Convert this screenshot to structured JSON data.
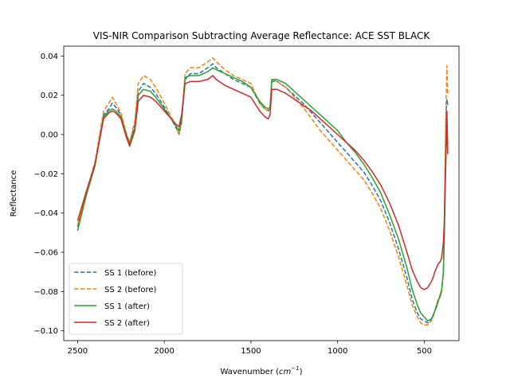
{
  "chart_data": {
    "type": "line",
    "title": "VIS-NIR Comparison Subtracting Average Reflectance: ACE SST BLACK",
    "xlabel_main": "Wavenumber (",
    "xlabel_unit": "cm",
    "xlabel_exp": "−1",
    "xlabel_close": ")",
    "ylabel": "Reflectance",
    "xlim": [
      2580,
      300
    ],
    "ylim": [
      -0.105,
      0.045
    ],
    "x_ticks": [
      2500,
      2000,
      1500,
      1000,
      500
    ],
    "x_tick_labels": [
      "2500",
      "2000",
      "1500",
      "1000",
      "500"
    ],
    "y_ticks": [
      0.04,
      0.02,
      0.0,
      -0.02,
      -0.04,
      -0.06,
      -0.08,
      -0.1
    ],
    "y_tick_labels": [
      "0.04",
      "0.02",
      "0.00",
      "−0.02",
      "−0.04",
      "−0.06",
      "−0.08",
      "−0.10"
    ],
    "legend_position": "lower-left",
    "series": [
      {
        "name": "SS 1 (before)",
        "color": "#1f77b4",
        "dash": true,
        "x": [
          2500,
          2450,
          2400,
          2350,
          2320,
          2300,
          2280,
          2250,
          2220,
          2200,
          2170,
          2150,
          2120,
          2080,
          2050,
          2000,
          1960,
          1930,
          1915,
          1900,
          1880,
          1850,
          1800,
          1750,
          1720,
          1700,
          1650,
          1600,
          1550,
          1500,
          1450,
          1420,
          1400,
          1390,
          1380,
          1350,
          1300,
          1250,
          1200,
          1150,
          1100,
          1050,
          1000,
          950,
          900,
          850,
          800,
          750,
          700,
          650,
          600,
          570,
          540,
          520,
          500,
          480,
          460,
          450,
          440,
          430,
          420,
          410,
          400,
          390,
          385,
          380,
          375,
          370,
          365
        ],
        "y": [
          -0.047,
          -0.03,
          -0.015,
          0.01,
          0.013,
          0.016,
          0.014,
          0.01,
          0.0,
          -0.004,
          0.005,
          0.022,
          0.026,
          0.024,
          0.021,
          0.014,
          0.008,
          0.003,
          0.0,
          0.006,
          0.028,
          0.031,
          0.031,
          0.034,
          0.036,
          0.034,
          0.031,
          0.028,
          0.026,
          0.024,
          0.016,
          0.013,
          0.012,
          0.013,
          0.027,
          0.027,
          0.024,
          0.02,
          0.016,
          0.011,
          0.006,
          0.001,
          -0.004,
          -0.009,
          -0.014,
          -0.019,
          -0.026,
          -0.034,
          -0.045,
          -0.058,
          -0.073,
          -0.084,
          -0.091,
          -0.094,
          -0.095,
          -0.096,
          -0.094,
          -0.093,
          -0.09,
          -0.087,
          -0.084,
          -0.083,
          -0.08,
          -0.07,
          -0.05,
          -0.02,
          0.01,
          0.018,
          0.015
        ]
      },
      {
        "name": "SS 2 (before)",
        "color": "#ff7f0e",
        "dash": true,
        "x": [
          2500,
          2450,
          2400,
          2350,
          2320,
          2300,
          2280,
          2250,
          2220,
          2200,
          2170,
          2150,
          2120,
          2080,
          2050,
          2000,
          1960,
          1930,
          1915,
          1900,
          1880,
          1850,
          1800,
          1750,
          1720,
          1700,
          1650,
          1600,
          1550,
          1500,
          1450,
          1420,
          1400,
          1390,
          1380,
          1350,
          1300,
          1250,
          1200,
          1150,
          1100,
          1050,
          1000,
          950,
          900,
          850,
          800,
          750,
          700,
          650,
          600,
          570,
          540,
          520,
          500,
          480,
          460,
          450,
          440,
          430,
          420,
          410,
          400,
          390,
          385,
          380,
          375,
          370,
          365
        ],
        "y": [
          -0.046,
          -0.03,
          -0.014,
          0.012,
          0.016,
          0.019,
          0.016,
          0.011,
          0.001,
          -0.004,
          0.007,
          0.026,
          0.03,
          0.028,
          0.024,
          0.016,
          0.009,
          0.004,
          0.0,
          0.007,
          0.031,
          0.034,
          0.034,
          0.037,
          0.039,
          0.037,
          0.033,
          0.03,
          0.028,
          0.026,
          0.016,
          0.013,
          0.012,
          0.013,
          0.028,
          0.027,
          0.024,
          0.019,
          0.014,
          0.008,
          0.002,
          -0.003,
          -0.008,
          -0.013,
          -0.018,
          -0.023,
          -0.03,
          -0.038,
          -0.049,
          -0.062,
          -0.077,
          -0.087,
          -0.093,
          -0.096,
          -0.097,
          -0.097,
          -0.095,
          -0.093,
          -0.09,
          -0.087,
          -0.084,
          -0.083,
          -0.08,
          -0.07,
          -0.05,
          -0.015,
          0.015,
          0.035,
          0.02
        ]
      },
      {
        "name": "SS 1 (after)",
        "color": "#2ca02c",
        "dash": false,
        "x": [
          2500,
          2450,
          2400,
          2350,
          2320,
          2300,
          2280,
          2250,
          2220,
          2200,
          2170,
          2150,
          2120,
          2080,
          2050,
          2000,
          1960,
          1930,
          1915,
          1900,
          1880,
          1850,
          1800,
          1750,
          1720,
          1700,
          1650,
          1600,
          1550,
          1500,
          1450,
          1420,
          1400,
          1390,
          1380,
          1350,
          1300,
          1250,
          1200,
          1150,
          1100,
          1050,
          1000,
          950,
          900,
          850,
          800,
          750,
          700,
          650,
          600,
          570,
          540,
          520,
          500,
          480,
          460,
          450,
          440,
          430,
          420,
          410,
          400,
          390,
          385,
          380,
          375,
          370,
          365
        ],
        "y": [
          -0.049,
          -0.031,
          -0.016,
          0.009,
          0.012,
          0.013,
          0.012,
          0.009,
          0.0,
          -0.005,
          0.003,
          0.02,
          0.023,
          0.022,
          0.019,
          0.013,
          0.008,
          0.004,
          0.002,
          0.008,
          0.029,
          0.03,
          0.03,
          0.032,
          0.034,
          0.033,
          0.031,
          0.029,
          0.027,
          0.024,
          0.017,
          0.014,
          0.013,
          0.014,
          0.028,
          0.028,
          0.026,
          0.022,
          0.018,
          0.014,
          0.01,
          0.006,
          0.002,
          -0.004,
          -0.009,
          -0.015,
          -0.022,
          -0.03,
          -0.041,
          -0.053,
          -0.068,
          -0.079,
          -0.087,
          -0.091,
          -0.093,
          -0.095,
          -0.094,
          -0.092,
          -0.09,
          -0.088,
          -0.085,
          -0.082,
          -0.079,
          -0.07,
          -0.055,
          -0.03,
          -0.01,
          0.005,
          -0.005
        ]
      },
      {
        "name": "SS 2 (after)",
        "color": "#d62728",
        "dash": false,
        "x": [
          2500,
          2450,
          2400,
          2350,
          2320,
          2300,
          2280,
          2250,
          2220,
          2200,
          2170,
          2150,
          2120,
          2080,
          2050,
          2000,
          1960,
          1930,
          1915,
          1900,
          1880,
          1850,
          1800,
          1750,
          1720,
          1700,
          1650,
          1600,
          1550,
          1500,
          1450,
          1420,
          1400,
          1390,
          1380,
          1350,
          1300,
          1250,
          1200,
          1150,
          1100,
          1050,
          1000,
          950,
          900,
          850,
          800,
          750,
          700,
          650,
          600,
          570,
          540,
          520,
          500,
          480,
          460,
          450,
          440,
          430,
          420,
          410,
          400,
          390,
          385,
          380,
          375,
          370,
          365
        ],
        "y": [
          -0.044,
          -0.029,
          -0.015,
          0.008,
          0.011,
          0.012,
          0.011,
          0.008,
          -0.001,
          -0.006,
          0.002,
          0.017,
          0.02,
          0.019,
          0.017,
          0.012,
          0.008,
          0.005,
          0.004,
          0.01,
          0.026,
          0.027,
          0.027,
          0.028,
          0.03,
          0.028,
          0.025,
          0.023,
          0.021,
          0.019,
          0.012,
          0.009,
          0.008,
          0.01,
          0.023,
          0.023,
          0.021,
          0.018,
          0.015,
          0.012,
          0.008,
          0.004,
          0.0,
          -0.004,
          -0.008,
          -0.013,
          -0.019,
          -0.026,
          -0.035,
          -0.046,
          -0.06,
          -0.069,
          -0.075,
          -0.078,
          -0.079,
          -0.078,
          -0.075,
          -0.073,
          -0.07,
          -0.068,
          -0.066,
          -0.065,
          -0.063,
          -0.055,
          -0.045,
          -0.025,
          -0.01,
          0.012,
          -0.01
        ]
      }
    ]
  }
}
